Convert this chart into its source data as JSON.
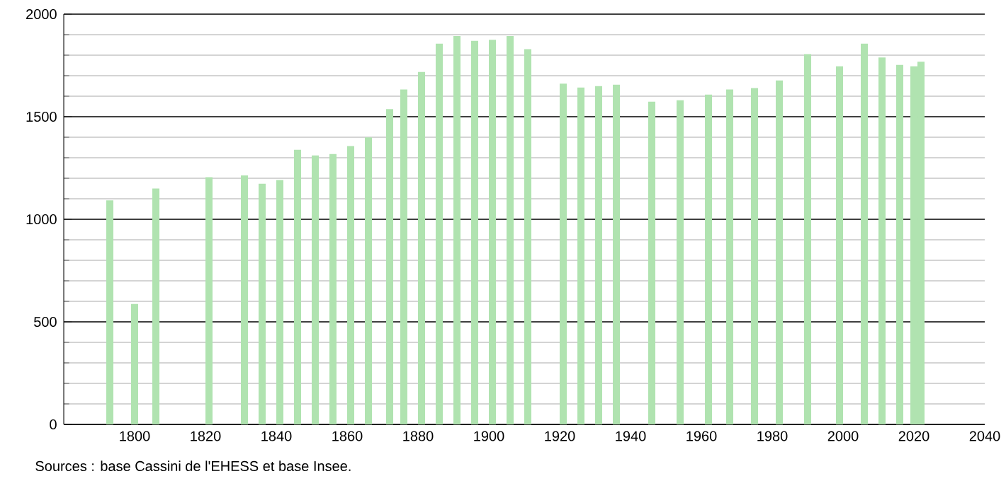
{
  "chart_data": {
    "type": "bar",
    "annotations": [
      "Sources : base Cassini de l'EHESS et base Insee."
    ],
    "x": [
      1793,
      1800,
      1806,
      1821,
      1831,
      1836,
      1841,
      1846,
      1851,
      1856,
      1861,
      1866,
      1872,
      1876,
      1881,
      1886,
      1891,
      1896,
      1901,
      1906,
      1911,
      1921,
      1926,
      1931,
      1936,
      1946,
      1954,
      1962,
      1968,
      1975,
      1982,
      1990,
      1999,
      2006,
      2011,
      2016,
      2020,
      2022
    ],
    "values": [
      1092,
      587,
      1150,
      1205,
      1214,
      1173,
      1191,
      1339,
      1311,
      1318,
      1357,
      1399,
      1537,
      1633,
      1718,
      1856,
      1893,
      1870,
      1875,
      1893,
      1829,
      1661,
      1642,
      1649,
      1656,
      1573,
      1580,
      1608,
      1633,
      1640,
      1677,
      1805,
      1746,
      1856,
      1789,
      1753,
      1746,
      1768
    ],
    "color": "#b0e3b0",
    "xlim": [
      1780,
      2040
    ],
    "xticks": [
      1800,
      1820,
      1840,
      1860,
      1880,
      1900,
      1920,
      1940,
      1960,
      1980,
      2000,
      2020,
      2040
    ],
    "ylim": [
      0,
      2000
    ],
    "yticks": [
      0,
      500,
      1000,
      1500,
      2000
    ],
    "grid": "y"
  }
}
